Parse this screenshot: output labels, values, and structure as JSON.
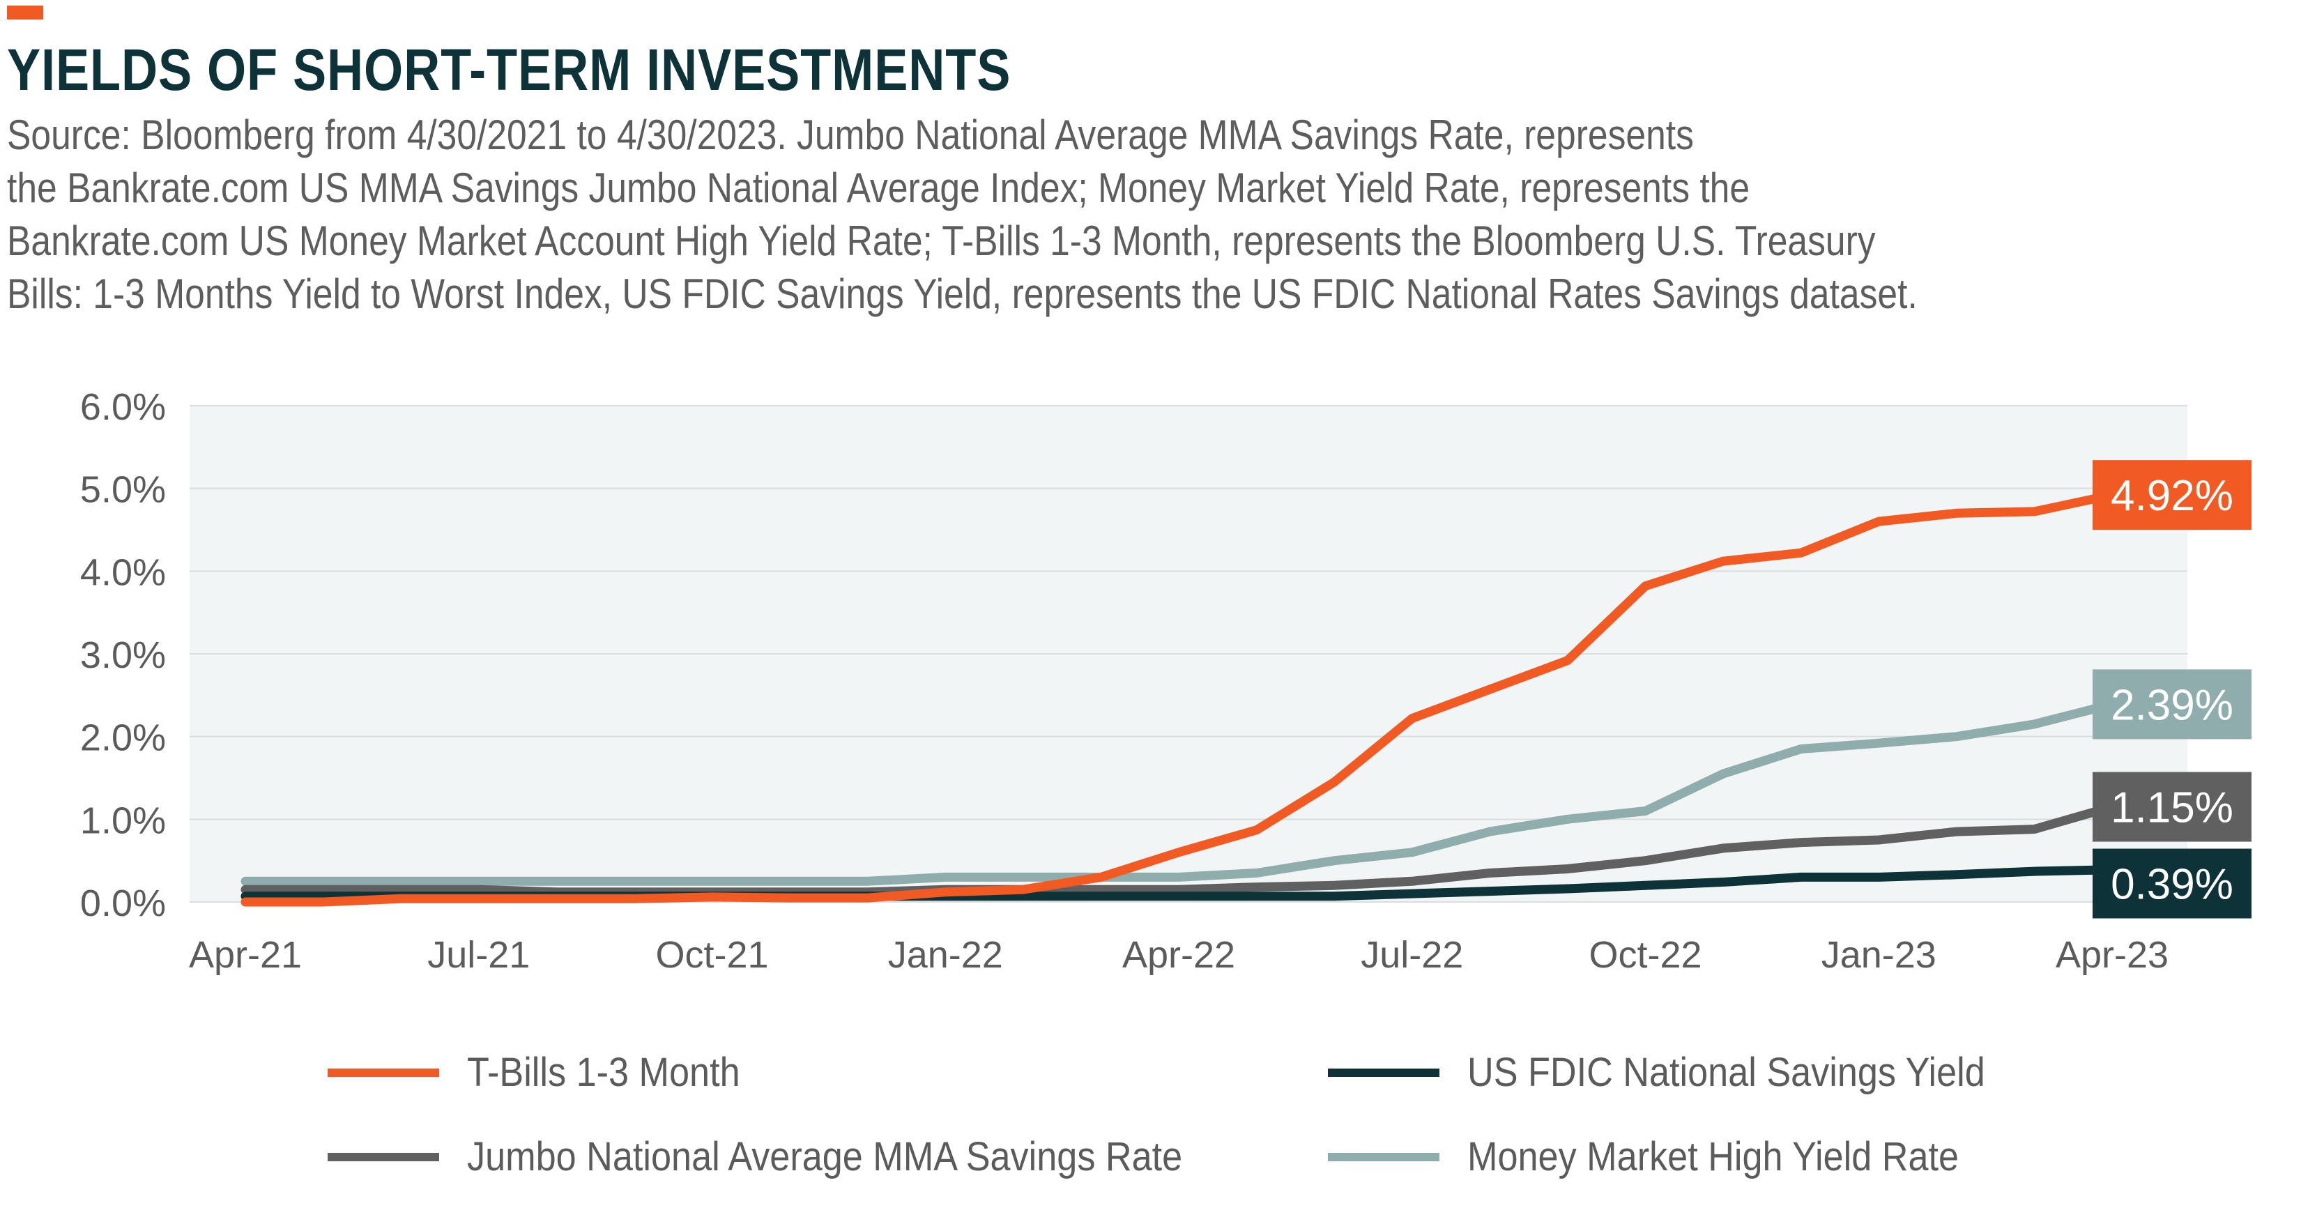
{
  "header": {
    "title": "YIELDS OF SHORT-TERM INVESTMENTS",
    "source_lines": [
      "Source: Bloomberg from 4/30/2021 to 4/30/2023. Jumbo National Average MMA Savings Rate, represents",
      "the Bankrate.com US MMA Savings Jumbo National Average Index; Money Market Yield Rate, represents the",
      "Bankrate.com US Money Market Account High Yield Rate; T-Bills 1-3  Month, represents the Bloomberg U.S. Treasury",
      "Bills: 1-3 Months Yield to Worst Index, US FDIC Savings Yield, represents the US FDIC National Rates Savings dataset."
    ]
  },
  "colors": {
    "accent": "#f15a22",
    "title": "#0d3238",
    "plot_background": "#f2f5f5",
    "grid": "#d9dddd"
  },
  "chart_data": {
    "type": "line",
    "title": "",
    "xlabel": "",
    "ylabel": "",
    "ylim": [
      0,
      6
    ],
    "yticks": [
      0,
      1,
      2,
      3,
      4,
      5,
      6
    ],
    "ytick_labels": [
      "0.0%",
      "1.0%",
      "2.0%",
      "3.0%",
      "4.0%",
      "5.0%",
      "6.0%"
    ],
    "x": [
      "Apr-21",
      "May-21",
      "Jun-21",
      "Jul-21",
      "Aug-21",
      "Sep-21",
      "Oct-21",
      "Nov-21",
      "Dec-21",
      "Jan-22",
      "Feb-22",
      "Mar-22",
      "Apr-22",
      "May-22",
      "Jun-22",
      "Jul-22",
      "Aug-22",
      "Sep-22",
      "Oct-22",
      "Nov-22",
      "Dec-22",
      "Jan-23",
      "Feb-23",
      "Mar-23",
      "Apr-23"
    ],
    "xtick_labels": [
      "Apr-21",
      "Jul-21",
      "Oct-21",
      "Jan-22",
      "Apr-22",
      "Jul-22",
      "Oct-22",
      "Jan-23",
      "Apr-23"
    ],
    "grid": "horizontal",
    "legend_position": "bottom",
    "series": [
      {
        "name": "Money Market High Yield Rate",
        "color": "#8fadad",
        "end_label": "2.39%",
        "values": [
          0.25,
          0.25,
          0.25,
          0.25,
          0.25,
          0.25,
          0.25,
          0.25,
          0.25,
          0.3,
          0.3,
          0.3,
          0.3,
          0.35,
          0.5,
          0.6,
          0.85,
          1.0,
          1.1,
          1.55,
          1.85,
          1.92,
          2.0,
          2.15,
          2.39
        ]
      },
      {
        "name": "Jumbo National Average MMA Savings Rate",
        "color": "#606060",
        "end_label": "1.15%",
        "values": [
          0.15,
          0.15,
          0.15,
          0.15,
          0.12,
          0.12,
          0.12,
          0.12,
          0.12,
          0.15,
          0.15,
          0.15,
          0.15,
          0.18,
          0.2,
          0.25,
          0.35,
          0.4,
          0.5,
          0.65,
          0.72,
          0.75,
          0.85,
          0.88,
          1.15
        ]
      },
      {
        "name": "US FDIC National Savings Yield",
        "color": "#0d3238",
        "end_label": "0.39%",
        "values": [
          0.07,
          0.07,
          0.07,
          0.07,
          0.07,
          0.07,
          0.07,
          0.07,
          0.07,
          0.07,
          0.07,
          0.07,
          0.07,
          0.07,
          0.07,
          0.1,
          0.13,
          0.16,
          0.2,
          0.24,
          0.3,
          0.3,
          0.33,
          0.37,
          0.39
        ]
      },
      {
        "name": "T-Bills 1-3 Month",
        "color": "#f15a22",
        "end_label": "4.92%",
        "values": [
          0.0,
          0.0,
          0.04,
          0.04,
          0.04,
          0.04,
          0.06,
          0.05,
          0.05,
          0.12,
          0.15,
          0.3,
          0.6,
          0.87,
          1.45,
          2.22,
          2.57,
          2.92,
          3.82,
          4.12,
          4.22,
          4.6,
          4.7,
          4.72,
          4.92
        ]
      }
    ]
  },
  "legend": {
    "items": [
      {
        "label": "T-Bills 1-3 Month",
        "color": "#f15a22"
      },
      {
        "label": "US FDIC National Savings Yield",
        "color": "#0d3238"
      },
      {
        "label": "Jumbo National Average MMA Savings Rate",
        "color": "#606060"
      },
      {
        "label": "Money Market High Yield Rate",
        "color": "#8fadad"
      }
    ]
  }
}
